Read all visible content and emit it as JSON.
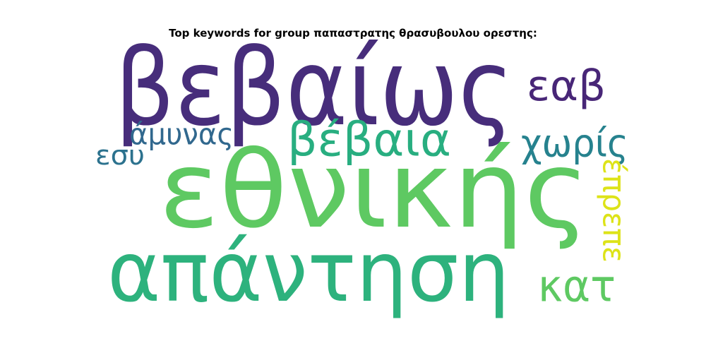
{
  "chart_data": {
    "type": "wordcloud",
    "title": "Top keywords for group παπαστρατης θρασυβουλου ορεστης:",
    "words": [
      {
        "text": "βεβαίως",
        "weight": 1.0,
        "color": "#472d7b"
      },
      {
        "text": "εθνικής",
        "weight": 0.95,
        "color": "#5ec962"
      },
      {
        "text": "απάντηση",
        "weight": 0.78,
        "color": "#2db27d"
      },
      {
        "text": "βέβαια",
        "weight": 0.45,
        "color": "#28ae80"
      },
      {
        "text": "εαβ",
        "weight": 0.42,
        "color": "#482677"
      },
      {
        "text": "χωρίς",
        "weight": 0.36,
        "color": "#26828e"
      },
      {
        "text": "κατ",
        "weight": 0.4,
        "color": "#5ec962"
      },
      {
        "text": "άμυνας",
        "weight": 0.29,
        "color": "#31688e"
      },
      {
        "text": "έπρεπε",
        "weight": 0.3,
        "color": "#dde318"
      },
      {
        "text": "εσυ",
        "weight": 0.25,
        "color": "#2c728e"
      }
    ]
  }
}
